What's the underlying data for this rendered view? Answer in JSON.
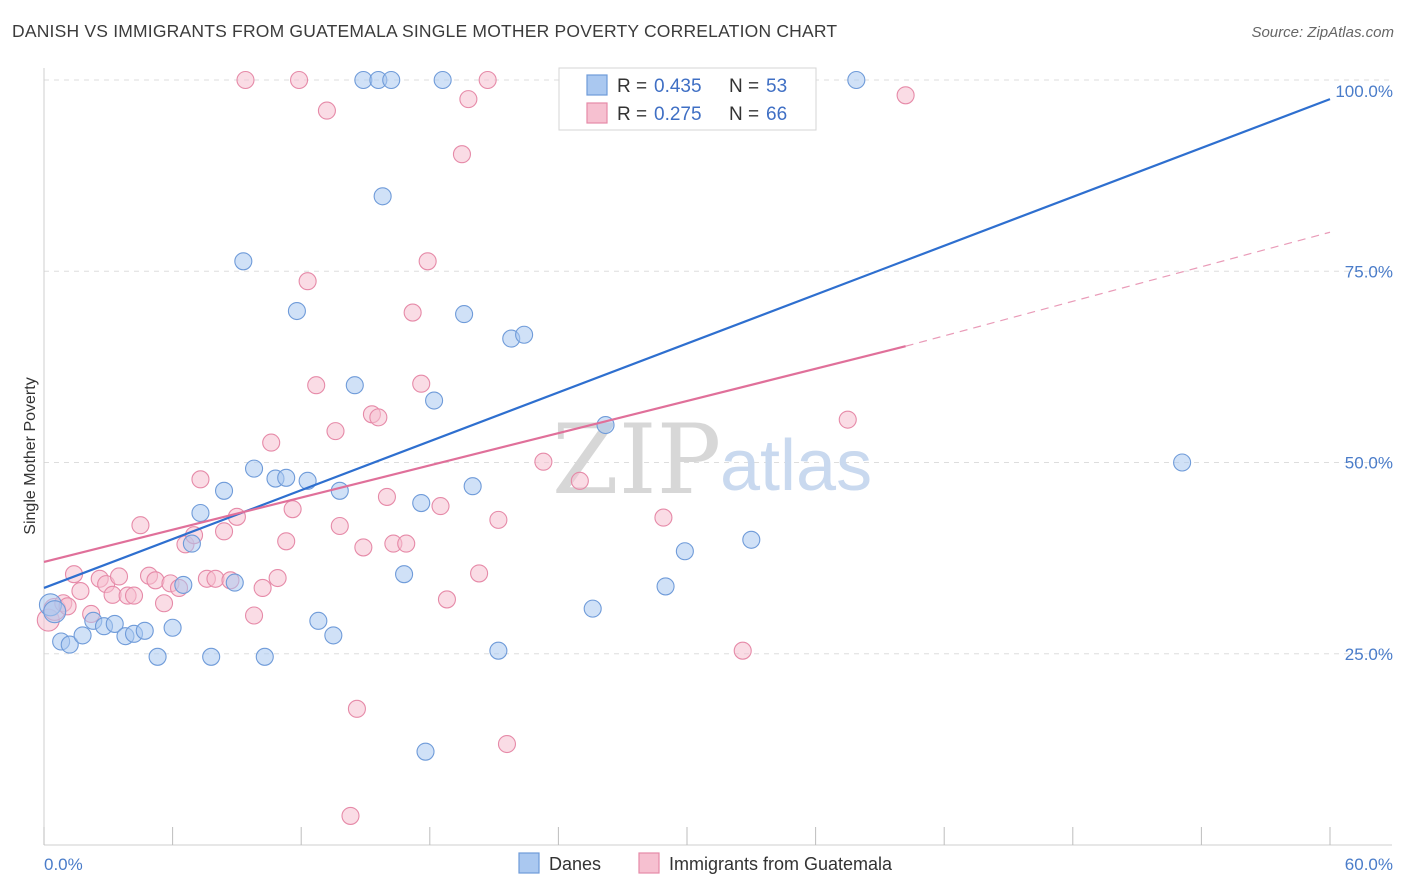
{
  "header": {
    "title": "DANISH VS IMMIGRANTS FROM GUATEMALA SINGLE MOTHER POVERTY CORRELATION CHART",
    "source": "Source: ZipAtlas.com"
  },
  "watermark": {
    "zip": "ZIP",
    "atlas": "atlas"
  },
  "colors": {
    "danes_fill": "#aac8f0",
    "danes_stroke": "#6f9bd9",
    "danes_line": "#2e6fcf",
    "guat_fill": "#f6c0d0",
    "guat_stroke": "#e68aa8",
    "guat_line": "#e0709a",
    "grid": "#dddddd",
    "tick_label": "#4a7cc9"
  },
  "legend": {
    "rows": [
      {
        "r_label": "R =",
        "r_value": "0.435",
        "n_label": "N =",
        "n_value": "53"
      },
      {
        "r_label": "R =",
        "r_value": "0.275",
        "n_label": "N =",
        "n_value": "66"
      }
    ],
    "bottom": [
      "Danes",
      "Immigrants from Guatemala"
    ]
  },
  "chart_data": {
    "type": "scatter",
    "title": "DANISH VS IMMIGRANTS FROM GUATEMALA SINGLE MOTHER POVERTY CORRELATION CHART",
    "xlabel": "",
    "ylabel": "Single Mother Poverty",
    "xlim": [
      0,
      60
    ],
    "ylim": [
      0,
      100
    ],
    "x_ticks": [
      "0.0%",
      "60.0%"
    ],
    "y_ticks": [
      "25.0%",
      "50.0%",
      "75.0%",
      "100.0%"
    ],
    "grid": true,
    "legend_position": "top-center",
    "series": [
      {
        "name": "Danes",
        "r": 0.435,
        "n": 53,
        "trend": {
          "x": [
            0,
            60
          ],
          "y": [
            33.6,
            97.5
          ]
        },
        "points": [
          [
            0.3,
            31.4
          ],
          [
            0.5,
            30.5
          ],
          [
            0.8,
            26.6
          ],
          [
            1.2,
            26.2
          ],
          [
            1.8,
            27.4
          ],
          [
            2.3,
            29.3
          ],
          [
            2.8,
            28.6
          ],
          [
            3.3,
            28.9
          ],
          [
            3.8,
            27.3
          ],
          [
            4.2,
            27.6
          ],
          [
            4.7,
            28.0
          ],
          [
            5.3,
            24.6
          ],
          [
            6.0,
            28.4
          ],
          [
            6.5,
            34.0
          ],
          [
            6.9,
            39.4
          ],
          [
            7.3,
            43.4
          ],
          [
            7.8,
            24.6
          ],
          [
            8.4,
            46.3
          ],
          [
            8.9,
            34.3
          ],
          [
            9.3,
            76.3
          ],
          [
            9.8,
            49.2
          ],
          [
            10.3,
            24.6
          ],
          [
            10.8,
            47.9
          ],
          [
            11.3,
            48.0
          ],
          [
            11.8,
            69.8
          ],
          [
            12.3,
            47.6
          ],
          [
            12.8,
            29.3
          ],
          [
            13.5,
            27.4
          ],
          [
            13.8,
            46.3
          ],
          [
            14.5,
            60.1
          ],
          [
            14.9,
            100.0
          ],
          [
            15.6,
            100.0
          ],
          [
            15.8,
            84.8
          ],
          [
            16.2,
            100.0
          ],
          [
            16.8,
            35.4
          ],
          [
            17.6,
            44.7
          ],
          [
            17.8,
            12.2
          ],
          [
            18.2,
            58.1
          ],
          [
            18.6,
            100.0
          ],
          [
            19.6,
            69.4
          ],
          [
            20.0,
            46.9
          ],
          [
            21.2,
            25.4
          ],
          [
            21.8,
            66.2
          ],
          [
            22.4,
            66.7
          ],
          [
            24.9,
            100.0
          ],
          [
            25.6,
            30.9
          ],
          [
            26.2,
            54.9
          ],
          [
            28.5,
            100.0
          ],
          [
            29.0,
            33.8
          ],
          [
            29.9,
            38.4
          ],
          [
            33.0,
            39.9
          ],
          [
            37.9,
            100.0
          ],
          [
            53.1,
            50.0
          ]
        ]
      },
      {
        "name": "Immigrants from Guatemala",
        "r": 0.275,
        "n": 66,
        "trend": {
          "x": [
            0,
            40.2
          ],
          "y": [
            37.0,
            65.2
          ],
          "dashed_to": {
            "x": 60,
            "y": 80.1
          }
        },
        "points": [
          [
            0.2,
            29.4
          ],
          [
            0.5,
            30.8
          ],
          [
            0.9,
            31.6
          ],
          [
            1.1,
            31.2
          ],
          [
            1.4,
            35.4
          ],
          [
            1.7,
            33.2
          ],
          [
            2.2,
            30.2
          ],
          [
            2.6,
            34.8
          ],
          [
            2.9,
            34.1
          ],
          [
            3.2,
            32.7
          ],
          [
            3.5,
            35.1
          ],
          [
            3.9,
            32.6
          ],
          [
            4.2,
            32.6
          ],
          [
            4.5,
            41.8
          ],
          [
            4.9,
            35.2
          ],
          [
            5.2,
            34.6
          ],
          [
            5.6,
            31.6
          ],
          [
            5.9,
            34.2
          ],
          [
            6.3,
            33.6
          ],
          [
            6.6,
            39.3
          ],
          [
            7.0,
            40.5
          ],
          [
            7.3,
            47.8
          ],
          [
            7.6,
            34.8
          ],
          [
            8.0,
            34.8
          ],
          [
            8.4,
            41.0
          ],
          [
            8.7,
            34.6
          ],
          [
            9.0,
            42.9
          ],
          [
            9.4,
            100.0
          ],
          [
            9.8,
            30.0
          ],
          [
            10.2,
            33.6
          ],
          [
            10.6,
            52.6
          ],
          [
            10.9,
            34.9
          ],
          [
            11.3,
            39.7
          ],
          [
            11.6,
            43.9
          ],
          [
            11.9,
            100.0
          ],
          [
            12.3,
            73.7
          ],
          [
            12.7,
            60.1
          ],
          [
            13.2,
            96.0
          ],
          [
            13.6,
            54.1
          ],
          [
            13.8,
            41.7
          ],
          [
            14.3,
            3.8
          ],
          [
            14.6,
            17.8
          ],
          [
            14.9,
            38.9
          ],
          [
            15.3,
            56.3
          ],
          [
            15.6,
            55.9
          ],
          [
            16.0,
            45.5
          ],
          [
            16.3,
            39.4
          ],
          [
            16.9,
            39.4
          ],
          [
            17.2,
            69.6
          ],
          [
            17.6,
            60.3
          ],
          [
            17.9,
            76.3
          ],
          [
            18.5,
            44.3
          ],
          [
            18.8,
            32.1
          ],
          [
            19.5,
            90.3
          ],
          [
            19.8,
            97.5
          ],
          [
            20.3,
            35.5
          ],
          [
            20.7,
            100.0
          ],
          [
            21.2,
            42.5
          ],
          [
            21.6,
            13.2
          ],
          [
            23.3,
            50.1
          ],
          [
            25.0,
            47.6
          ],
          [
            28.9,
            42.8
          ],
          [
            30.0,
            100.0
          ],
          [
            32.6,
            25.4
          ],
          [
            37.5,
            55.6
          ],
          [
            40.2,
            98.0
          ]
        ]
      }
    ]
  }
}
